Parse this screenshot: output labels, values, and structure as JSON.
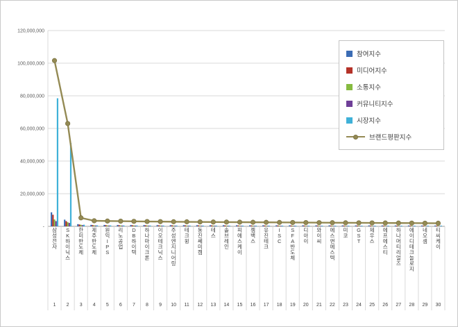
{
  "frame": {
    "background": "#ffffff",
    "border_color": "#c9c9c9"
  },
  "chart_data": {
    "type": "bar",
    "subtype": "grouped-bars-with-line",
    "title": "",
    "grid": true,
    "legend_position": "right-top",
    "categories": [
      "삼성전자",
      "SK하이닉스",
      "한미반도체",
      "제주반도체",
      "원익IPS",
      "리노공업",
      "DB하이텍",
      "하나마이크론",
      "이오테크닉스",
      "주성엔지니어링",
      "테크윙",
      "동진쎄미켐",
      "테스",
      "솔브레인",
      "피에스케이",
      "젬백스",
      "유진테크",
      "ISC",
      "SFA반도체",
      "디아이",
      "와이씨",
      "에스앤에스텍",
      "미코",
      "GST",
      "제우스",
      "에프에스티",
      "하나머티리얼즈",
      "에이디테크놀로지",
      "네오셈",
      "티씨케이"
    ],
    "ranks": [
      "1",
      "2",
      "3",
      "4",
      "5",
      "6",
      "7",
      "8",
      "9",
      "10",
      "11",
      "12",
      "13",
      "14",
      "15",
      "16",
      "17",
      "18",
      "19",
      "20",
      "21",
      "22",
      "23",
      "24",
      "25",
      "26",
      "27",
      "28",
      "29",
      "30"
    ],
    "y_axis": {
      "min": 0,
      "max": 120000000,
      "step": 20000000,
      "tick_labels": [
        "-",
        "20,000,000",
        "40,000,000",
        "60,000,000",
        "80,000,000",
        "100,000,000",
        "120,000,000"
      ]
    },
    "series": [
      {
        "name": "참여지수",
        "type": "bar",
        "color": "#3B6CB4",
        "values": [
          8600000,
          4100000,
          1350000,
          900000,
          860000,
          830000,
          800000,
          780000,
          760000,
          740000,
          730000,
          710000,
          700000,
          690000,
          670000,
          660000,
          650000,
          630000,
          620000,
          610000,
          600000,
          590000,
          580000,
          570000,
          560000,
          550000,
          540000,
          520000,
          510000,
          500000
        ]
      },
      {
        "name": "미디어지수",
        "type": "bar",
        "color": "#B53228",
        "values": [
          7100000,
          3200000,
          1150000,
          750000,
          720000,
          700000,
          680000,
          650000,
          640000,
          620000,
          610000,
          600000,
          590000,
          580000,
          560000,
          550000,
          540000,
          530000,
          520000,
          510000,
          500000,
          490000,
          480000,
          470000,
          460000,
          450000,
          440000,
          430000,
          420000,
          410000
        ]
      },
      {
        "name": "소통지수",
        "type": "bar",
        "color": "#86BB40",
        "values": [
          4200000,
          2500000,
          950000,
          620000,
          590000,
          570000,
          550000,
          540000,
          520000,
          510000,
          500000,
          490000,
          480000,
          470000,
          460000,
          450000,
          440000,
          430000,
          420000,
          410000,
          400000,
          390000,
          380000,
          370000,
          360000,
          350000,
          340000,
          330000,
          320000,
          310000
        ]
      },
      {
        "name": "커뮤니티지수",
        "type": "bar",
        "color": "#6F3F98",
        "values": [
          3200000,
          2100000,
          750000,
          520000,
          500000,
          480000,
          470000,
          460000,
          450000,
          440000,
          430000,
          420000,
          410000,
          400000,
          390000,
          380000,
          370000,
          360000,
          350000,
          340000,
          330000,
          320000,
          310000,
          300000,
          290000,
          280000,
          270000,
          260000,
          250000,
          240000
        ]
      },
      {
        "name": "시장지수",
        "type": "bar",
        "color": "#3FB1D8",
        "values": [
          78500000,
          51100000,
          1000000,
          610000,
          580000,
          570000,
          550000,
          520000,
          510000,
          510000,
          490000,
          480000,
          470000,
          460000,
          470000,
          460000,
          450000,
          450000,
          440000,
          430000,
          430000,
          430000,
          430000,
          430000,
          430000,
          430000,
          430000,
          440000,
          440000,
          440000
        ]
      },
      {
        "name": "브랜드평판지수",
        "type": "line",
        "color": "#948A54",
        "values": [
          101600000,
          63000000,
          5200000,
          3400000,
          3250000,
          3150000,
          3050000,
          2950000,
          2880000,
          2820000,
          2760000,
          2700000,
          2650000,
          2600000,
          2550000,
          2500000,
          2450000,
          2400000,
          2350000,
          2300000,
          2260000,
          2220000,
          2180000,
          2140000,
          2100000,
          2060000,
          2020000,
          1980000,
          1940000,
          1900000
        ]
      }
    ]
  }
}
